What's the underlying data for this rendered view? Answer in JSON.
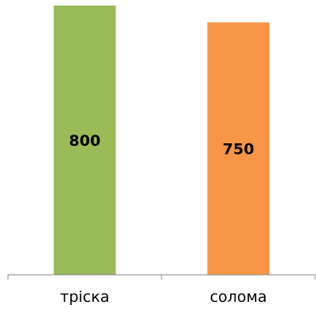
{
  "chart_data": {
    "type": "bar",
    "categories": [
      "тріска",
      "солома"
    ],
    "values": [
      800,
      750
    ],
    "colors": [
      "#9bbb59",
      "#f79646"
    ],
    "data_labels": [
      "800",
      "750"
    ],
    "ylim": [
      0,
      800
    ],
    "grid": false,
    "legend": "none",
    "title": "",
    "xlabel": "",
    "ylabel": ""
  }
}
